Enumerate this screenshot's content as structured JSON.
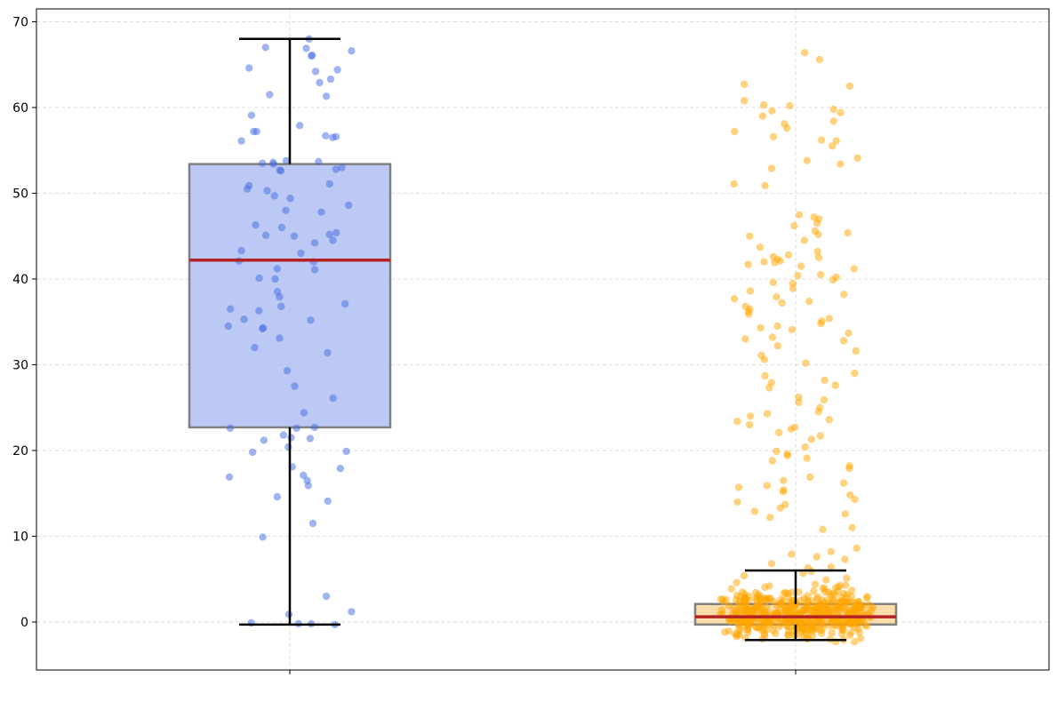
{
  "chart_data": {
    "type": "box",
    "title": "",
    "xlabel": "",
    "ylabel": "",
    "ylim": [
      -5.6,
      71.5
    ],
    "yticks": [
      0,
      10,
      20,
      30,
      40,
      50,
      60,
      70
    ],
    "ytick_labels": [
      "0",
      "10",
      "20",
      "30",
      "40",
      "50",
      "60",
      "70"
    ],
    "xtick_labels": [
      "",
      ""
    ],
    "grid": true,
    "series": [
      {
        "color": "#4169e1",
        "box_fill": "#b0c0f2",
        "stats": {
          "whisker_low": -0.3,
          "q1": 22.7,
          "median": 42.2,
          "q3": 53.4,
          "whisker_high": 68.0
        },
        "points": [
          68.0,
          67.0,
          66.9,
          66.6,
          66.1,
          66.0,
          64.6,
          64.4,
          64.2,
          63.3,
          62.9,
          61.5,
          61.3,
          59.1,
          57.9,
          57.2,
          57.2,
          56.7,
          56.6,
          56.5,
          56.1,
          53.8,
          53.7,
          53.6,
          53.5,
          53.4,
          53.0,
          52.8,
          52.7,
          52.6,
          51.1,
          50.9,
          50.5,
          50.3,
          49.7,
          49.4,
          48.6,
          48.0,
          47.8,
          46.3,
          46.0,
          45.4,
          45.2,
          45.1,
          45.0,
          44.5,
          44.2,
          43.3,
          43.0,
          42.1,
          42.0,
          41.2,
          41.1,
          40.1,
          40.0,
          38.5,
          37.9,
          37.1,
          36.8,
          36.5,
          36.3,
          35.3,
          35.2,
          34.5,
          34.3,
          34.2,
          33.1,
          32.0,
          31.4,
          29.3,
          27.5,
          26.1,
          24.4,
          22.7,
          22.6,
          22.6,
          21.8,
          21.5,
          21.4,
          21.2,
          20.4,
          19.9,
          19.8,
          18.1,
          17.9,
          17.1,
          16.9,
          16.5,
          15.9,
          14.6,
          14.1,
          11.5,
          9.9,
          3.0,
          1.2,
          0.9,
          -0.1,
          -0.2,
          -0.2,
          -0.3
        ]
      },
      {
        "color": "#ffa500",
        "box_fill": "#f9d79b",
        "stats": {
          "whisker_low": -2.1,
          "q1": -0.3,
          "median": 0.6,
          "q3": 2.1,
          "whisker_high": 6.0
        },
        "points": [
          66.4,
          65.6,
          62.7,
          62.5,
          60.8,
          60.3,
          60.2,
          59.8,
          59.6,
          59.4,
          59.0,
          58.4,
          58.1,
          57.6,
          57.2,
          56.6,
          56.2,
          56.1,
          55.5,
          54.1,
          53.8,
          53.4,
          52.9,
          51.1,
          50.9,
          47.5,
          47.2,
          47.0,
          46.5,
          46.2,
          45.6,
          45.4,
          45.2,
          45.0,
          44.5,
          43.7,
          43.2,
          42.8,
          42.6,
          42.5,
          42.3,
          42.1,
          42.0,
          41.9,
          41.7,
          41.5,
          41.2,
          40.5,
          40.4,
          40.2,
          39.9,
          39.6,
          39.5,
          38.9,
          38.6,
          38.2,
          37.9,
          37.7,
          37.4,
          37.2,
          36.8,
          36.5,
          36.2,
          35.9,
          35.4,
          35.1,
          34.8,
          34.5,
          34.3,
          34.1,
          33.7,
          33.2,
          33.0,
          32.8,
          32.2,
          31.6,
          31.1,
          30.6,
          30.2,
          29.0,
          28.7,
          28.2,
          27.9,
          27.6,
          27.3,
          26.2,
          25.9,
          25.6,
          25.0,
          24.5,
          24.3,
          24.0,
          23.6,
          23.4,
          23.0,
          22.7,
          22.5,
          22.1,
          21.7,
          21.3,
          20.4,
          19.9,
          19.6,
          19.4,
          19.1,
          18.8,
          18.2,
          17.9,
          16.9,
          16.5,
          16.2,
          15.9,
          15.7,
          15.4,
          15.2,
          14.8,
          14.3,
          14.0,
          13.7,
          13.3,
          12.9,
          12.6,
          12.2,
          11.0,
          10.8,
          8.6,
          8.2,
          7.9,
          7.6,
          7.3,
          6.8,
          6.4,
          6.3,
          5.9,
          5.7,
          5.4,
          5.1,
          4.9,
          4.6,
          4.4,
          4.2,
          4.0,
          3.9,
          3.7,
          3.5,
          3.3,
          3.2,
          3.0,
          2.9,
          2.8,
          2.6,
          2.5,
          2.4,
          2.3,
          2.2,
          2.1,
          2.0,
          1.9,
          1.8,
          1.7,
          1.6,
          1.5,
          1.4,
          1.3,
          1.2,
          1.1,
          1.0,
          0.9,
          0.8,
          0.7,
          0.6,
          0.5,
          0.4,
          0.3,
          0.2,
          0.1,
          0.0,
          -0.1,
          -0.2,
          -0.3,
          -0.4,
          -0.5,
          -0.6,
          -0.8,
          -1.0,
          -1.2,
          -1.4,
          -1.7,
          -2.0
        ],
        "dense_cluster": {
          "count": 420,
          "mean": 0.8,
          "sd": 1.3
        }
      }
    ]
  }
}
